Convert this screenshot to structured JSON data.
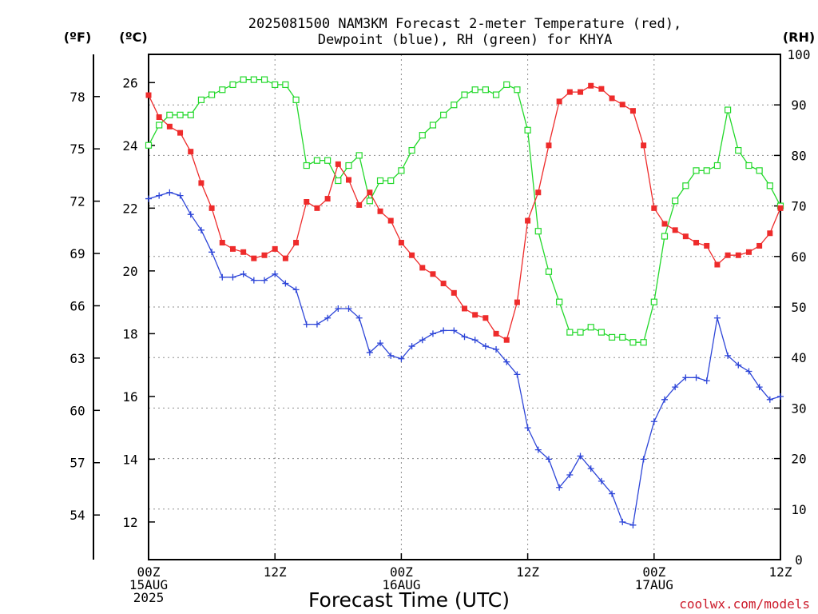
{
  "chart_data": {
    "type": "line",
    "title_line1": "2025081500 NAM3KM Forecast 2-meter Temperature (red),",
    "title_line2": "Dewpoint (blue), RH (green) for KHYA",
    "xlabel": "Forecast Time (UTC)",
    "credit": "coolwx.com/models",
    "axes": {
      "left_f": {
        "unit": "(ºF)",
        "ticks": [
          54,
          57,
          60,
          63,
          66,
          69,
          72,
          75,
          78
        ]
      },
      "left_c": {
        "unit": "(ºC)",
        "range": [
          10.8,
          26.9
        ],
        "ticks": [
          12,
          14,
          16,
          18,
          20,
          22,
          24,
          26
        ]
      },
      "right_rh": {
        "unit": "(RH)",
        "range": [
          0,
          100
        ],
        "ticks": [
          0,
          10,
          20,
          30,
          40,
          50,
          60,
          70,
          80,
          90,
          100
        ]
      },
      "x": {
        "range_hours": [
          0,
          60
        ],
        "ticks": [
          {
            "hour": 0,
            "lines": [
              "00Z",
              "15AUG",
              "2025"
            ]
          },
          {
            "hour": 12,
            "lines": [
              "12Z"
            ]
          },
          {
            "hour": 24,
            "lines": [
              "00Z",
              "16AUG"
            ]
          },
          {
            "hour": 36,
            "lines": [
              "12Z"
            ]
          },
          {
            "hour": 48,
            "lines": [
              "00Z",
              "17AUG"
            ]
          },
          {
            "hour": 60,
            "lines": [
              "12Z"
            ]
          }
        ]
      }
    },
    "grid": true,
    "x_hours": [
      0,
      1,
      2,
      3,
      4,
      5,
      6,
      7,
      8,
      9,
      10,
      11,
      12,
      13,
      14,
      15,
      16,
      17,
      18,
      19,
      20,
      21,
      22,
      23,
      24,
      25,
      26,
      27,
      28,
      29,
      30,
      31,
      32,
      33,
      34,
      35,
      36,
      37,
      38,
      39,
      40,
      41,
      42,
      43,
      44,
      45,
      46,
      47,
      48,
      49,
      50,
      51,
      52,
      53,
      54,
      55,
      56,
      57,
      58,
      59,
      60
    ],
    "series": [
      {
        "name": "2-meter Temperature",
        "color": "#ee2b2b",
        "axis": "celsius",
        "marker": "filled-square",
        "values": [
          25.6,
          24.9,
          24.6,
          24.4,
          23.8,
          22.8,
          22.0,
          20.9,
          20.7,
          20.6,
          20.4,
          20.5,
          20.7,
          20.4,
          20.9,
          22.2,
          22.0,
          22.3,
          23.4,
          22.9,
          22.1,
          22.5,
          21.9,
          21.6,
          20.9,
          20.5,
          20.1,
          19.9,
          19.6,
          19.3,
          18.8,
          18.6,
          18.5,
          18.0,
          17.8,
          19.0,
          21.6,
          22.5,
          24.0,
          25.4,
          25.7,
          25.7,
          25.9,
          25.8,
          25.5,
          25.3,
          25.1,
          24.0,
          22.0,
          21.5,
          21.3,
          21.1,
          20.9,
          20.8,
          20.2,
          20.5,
          20.5,
          20.6,
          20.8,
          21.2,
          22.0
        ]
      },
      {
        "name": "Dewpoint",
        "color": "#2d45d8",
        "axis": "celsius",
        "marker": "plus",
        "values": [
          22.3,
          22.4,
          22.5,
          22.4,
          21.8,
          21.3,
          20.6,
          19.8,
          19.8,
          19.9,
          19.7,
          19.7,
          19.9,
          19.6,
          19.4,
          18.3,
          18.3,
          18.5,
          18.8,
          18.8,
          18.5,
          17.4,
          17.7,
          17.3,
          17.2,
          17.6,
          17.8,
          18.0,
          18.1,
          18.1,
          17.9,
          17.8,
          17.6,
          17.5,
          17.1,
          16.7,
          15.0,
          14.3,
          14.0,
          13.1,
          13.5,
          14.1,
          13.7,
          13.3,
          12.9,
          12.0,
          11.9,
          14.0,
          15.2,
          15.9,
          16.3,
          16.6,
          16.6,
          16.5,
          18.5,
          17.3,
          17.0,
          16.8,
          16.3,
          15.9,
          16.0
        ]
      },
      {
        "name": "RH",
        "color": "#22d82a",
        "axis": "rh",
        "marker": "open-square",
        "values": [
          82,
          86,
          88,
          88,
          88,
          91,
          92,
          93,
          94,
          95,
          95,
          95,
          94,
          94,
          91,
          78,
          79,
          79,
          75,
          78,
          80,
          71,
          75,
          75,
          77,
          81,
          84,
          86,
          88,
          90,
          92,
          93,
          93,
          92,
          94,
          93,
          85,
          65,
          57,
          51,
          45,
          45,
          46,
          45,
          44,
          44,
          43,
          43,
          51,
          64,
          71,
          74,
          77,
          77,
          78,
          89,
          81,
          78,
          77,
          74,
          70
        ]
      }
    ]
  }
}
